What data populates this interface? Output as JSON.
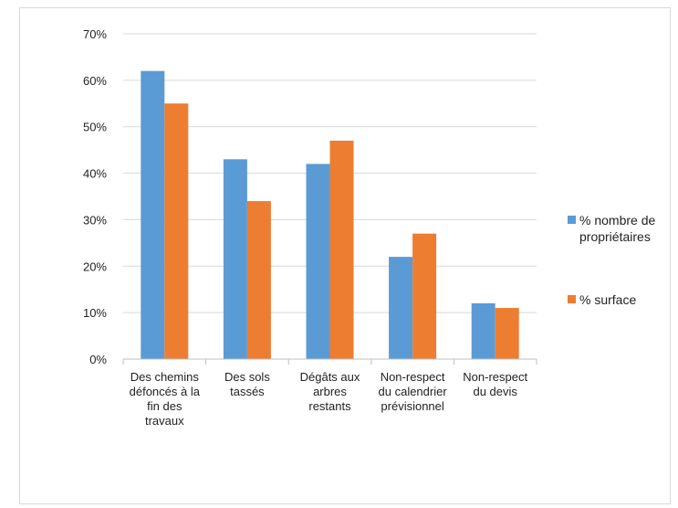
{
  "chart_data": {
    "type": "bar",
    "title": "",
    "xlabel": "",
    "ylabel": "",
    "ylim": [
      0,
      70
    ],
    "yticks": [
      0,
      10,
      20,
      30,
      40,
      50,
      60,
      70
    ],
    "y_tick_format": "{v}%",
    "categories": [
      [
        "Des chemins",
        "défoncés à la",
        "fin des",
        "travaux"
      ],
      [
        "Des sols",
        "tassés"
      ],
      [
        "Dégâts aux",
        "arbres",
        "restants"
      ],
      [
        "Non-respect",
        "du calendrier",
        "prévisionnel"
      ],
      [
        "Non-respect",
        "du devis"
      ]
    ],
    "series": [
      {
        "name": [
          "% nombre de",
          "propriétaires"
        ],
        "color": "#5B9BD5",
        "values": [
          62,
          43,
          42,
          22,
          12
        ]
      },
      {
        "name": [
          "% surface"
        ],
        "color": "#ED7D31",
        "values": [
          55,
          34,
          47,
          27,
          11
        ]
      }
    ],
    "grid": true,
    "legend_position": "right"
  }
}
